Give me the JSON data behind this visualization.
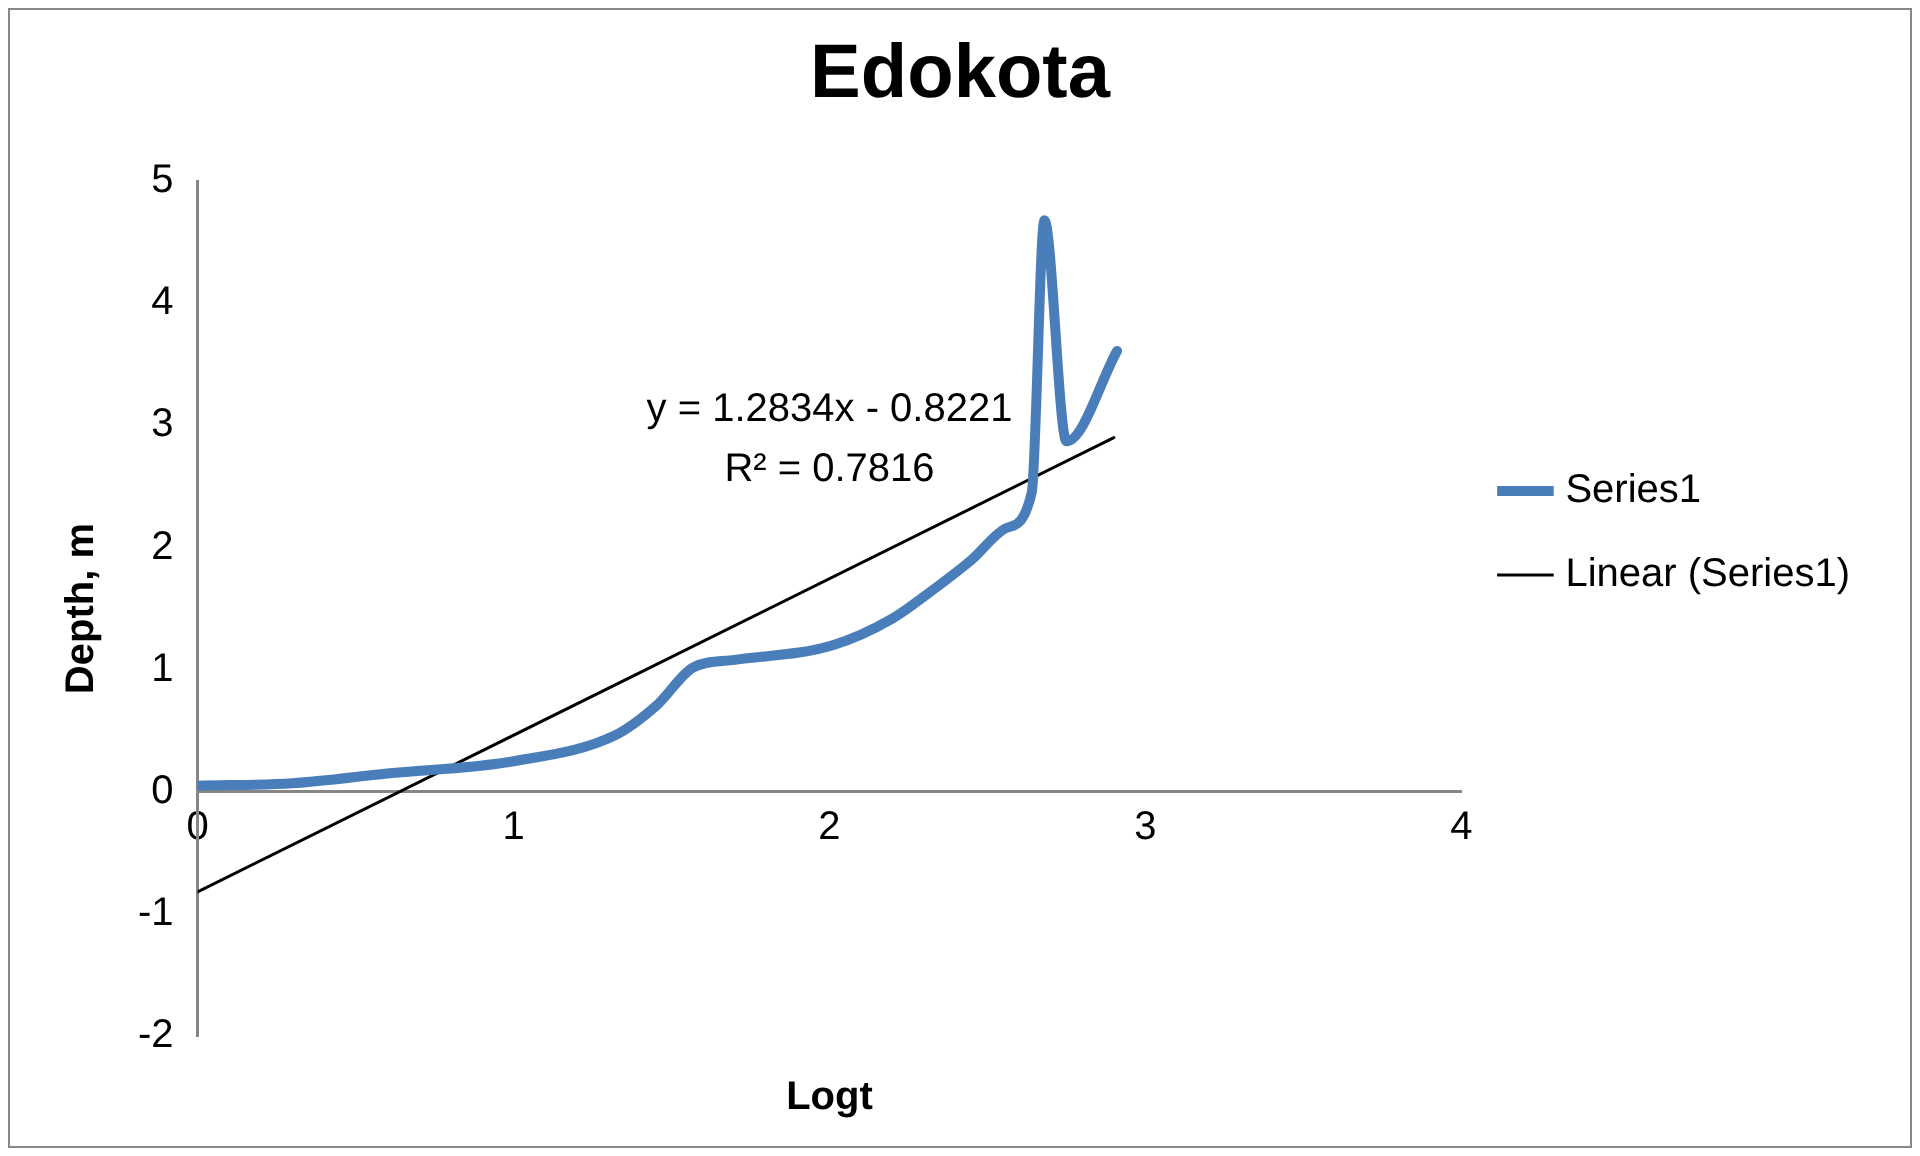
{
  "chart_data": {
    "type": "line",
    "title": "Edokota",
    "xlabel": "Logt",
    "ylabel": "Depth, m",
    "xlim": [
      0,
      4
    ],
    "xticks": [
      0,
      1,
      2,
      3,
      4
    ],
    "ylim": [
      -2,
      5
    ],
    "yticks": [
      -2,
      -1,
      0,
      1,
      2,
      3,
      4,
      5
    ],
    "grid": false,
    "legend": "right",
    "marker": "none",
    "annotations": [
      "y = 1.2834x - 0.8221",
      "R² = 0.7816"
    ],
    "series": [
      {
        "name": "Series1",
        "color": "#4a7ebb",
        "x": [
          0,
          0.3,
          0.6,
          1.0,
          1.32,
          1.45,
          1.57,
          1.7,
          2.01,
          2.2,
          2.31,
          2.45,
          2.56,
          2.64,
          2.68,
          2.75,
          2.91
        ],
        "values": [
          0.05,
          0.07,
          0.15,
          0.25,
          0.46,
          0.7,
          1.02,
          1.08,
          1.2,
          1.42,
          1.62,
          1.9,
          2.16,
          2.45,
          4.68,
          2.87,
          3.61
        ]
      },
      {
        "name": "Linear (Series1)",
        "type": "line",
        "color": "#000000",
        "x": [
          0,
          2.9
        ],
        "values": [
          -0.82,
          2.9
        ]
      }
    ]
  }
}
